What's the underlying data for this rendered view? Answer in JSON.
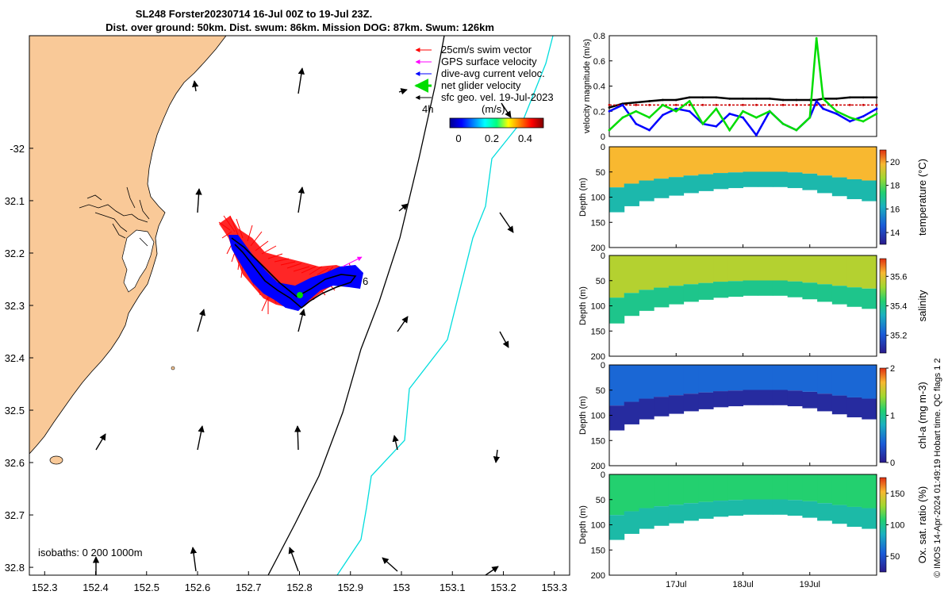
{
  "title": {
    "line1": "SL248 Forster20230714 16-Jul 00Z to 19-Jul 23Z.",
    "line2": "Dist. over ground: 50km. Dist. swum: 86km. Mission DOG: 87km. Swum: 126km"
  },
  "colors": {
    "land": "#f9c998",
    "swim": "#ff0000",
    "gps": "#ff00ff",
    "dive_avg": "#0000ff",
    "net": "#00dd00",
    "sfc_geo": "#000000",
    "isobath_200": "#000000",
    "isobath_1000": "#00dddd",
    "red_dashed": "#cc0000"
  },
  "map": {
    "xlim": [
      152.27,
      153.33
    ],
    "ylim": [
      -32.815,
      -31.785
    ],
    "x_ticks": [
      "152.3",
      "152.4",
      "152.5",
      "152.6",
      "152.7",
      "152.8",
      "152.9",
      "153",
      "153.1",
      "153.2",
      "153.3"
    ],
    "y_ticks": [
      "-32",
      "32.1",
      "32.2",
      "32.3",
      "32.4",
      "32.5",
      "32.6",
      "32.7",
      "32.8"
    ],
    "legend": [
      {
        "label": "25cm/s swim vector",
        "color": "#ff0000"
      },
      {
        "label": "GPS surface velocity",
        "color": "#ff00ff"
      },
      {
        "label": "dive-avg current veloc.",
        "color": "#0000ff"
      },
      {
        "label": "net glider velocity",
        "color": "#00dd00"
      },
      {
        "label": "sfc geo. vel. 19-Jul-2023",
        "color": "#000000"
      }
    ],
    "colorbar": {
      "label_4h": "4h",
      "units": "(m/s)",
      "ticks": [
        "0",
        "0.2",
        "0.4"
      ],
      "range": [
        0,
        0.5
      ]
    },
    "isobath_label": "isobaths: 0   200  1000m",
    "track_label": "6"
  },
  "chart_data": [
    {
      "type": "line",
      "title": "",
      "ylabel": "velocity magnitude (m/s)",
      "ylim": [
        0,
        0.8
      ],
      "y_ticks": [
        "0",
        "0.2",
        "0.4",
        "0.6",
        "0.8"
      ],
      "x_ticks": [
        "17Jul",
        "18Jul",
        "19Jul"
      ],
      "x": [
        16.0,
        16.2,
        16.4,
        16.6,
        16.8,
        17.0,
        17.2,
        17.4,
        17.6,
        17.8,
        18.0,
        18.2,
        18.4,
        18.6,
        18.8,
        19.0,
        19.1,
        19.2,
        19.4,
        19.6,
        19.8,
        20.0
      ],
      "series": [
        {
          "name": "surface geostrophic speed",
          "color": "#000000",
          "values": [
            0.23,
            0.26,
            0.27,
            0.28,
            0.29,
            0.29,
            0.31,
            0.31,
            0.31,
            0.3,
            0.3,
            0.3,
            0.3,
            0.29,
            0.29,
            0.29,
            0.29,
            0.3,
            0.3,
            0.31,
            0.31,
            0.31
          ]
        },
        {
          "name": "25cm/s swim speed",
          "color": "#cc0000",
          "values": [
            0.25,
            0.25,
            0.25,
            0.25,
            0.25,
            0.25,
            0.25,
            0.25,
            0.25,
            0.25,
            0.25,
            0.25,
            0.25,
            0.25,
            0.25,
            0.25,
            0.25,
            0.25,
            0.25,
            0.25,
            0.25,
            0.25
          ]
        },
        {
          "name": "dive-avg current speed",
          "color": "#0000ff",
          "values": [
            0.2,
            0.25,
            0.1,
            0.05,
            0.17,
            0.22,
            0.2,
            0.1,
            0.08,
            0.18,
            0.15,
            0.01,
            0.2,
            0.1,
            0.05,
            0.15,
            0.28,
            0.22,
            0.18,
            0.12,
            0.16,
            0.22
          ]
        },
        {
          "name": "net glider speed",
          "color": "#00dd00",
          "values": [
            0.05,
            0.15,
            0.2,
            0.15,
            0.25,
            0.2,
            0.28,
            0.1,
            0.22,
            0.05,
            0.2,
            0.15,
            0.2,
            0.1,
            0.05,
            0.15,
            0.78,
            0.3,
            0.2,
            0.15,
            0.12,
            0.18
          ]
        }
      ]
    },
    {
      "type": "heatmap",
      "ylabel": "Depth (m)",
      "cbar_label": "temperature (°C)",
      "cbar_ticks": [
        "14",
        "16",
        "18",
        "20"
      ],
      "cbar_range": [
        13,
        21
      ],
      "y_ticks": [
        "0",
        "50",
        "100",
        "150",
        "200"
      ],
      "ylim": [
        0,
        200
      ],
      "bottom_depth": [
        130,
        118,
        108,
        102,
        97,
        92,
        88,
        84,
        82,
        80,
        80,
        80,
        82,
        86,
        92,
        98,
        104,
        108
      ],
      "surface_value": 19.8,
      "deep_value": 16.5
    },
    {
      "type": "heatmap",
      "ylabel": "Depth (m)",
      "cbar_label": "salinity",
      "cbar_ticks": [
        "35.2",
        "35.4",
        "35.6"
      ],
      "cbar_range": [
        35.08,
        35.72
      ],
      "y_ticks": [
        "0",
        "50",
        "100",
        "150",
        "200"
      ],
      "ylim": [
        0,
        200
      ],
      "bottom_depth": [
        135,
        120,
        110,
        103,
        97,
        92,
        88,
        84,
        82,
        80,
        80,
        80,
        83,
        87,
        92,
        97,
        102,
        106
      ],
      "surface_value": 35.55,
      "deep_value": 35.4
    },
    {
      "type": "heatmap",
      "ylabel": "Depth (m)",
      "cbar_label": "chl-a (mg m-3)",
      "cbar_ticks": [
        "0",
        "1",
        "2"
      ],
      "cbar_range": [
        0,
        2
      ],
      "y_ticks": [
        "0",
        "50",
        "100",
        "150",
        "200"
      ],
      "ylim": [
        0,
        200
      ],
      "bottom_depth": [
        130,
        118,
        108,
        102,
        97,
        92,
        88,
        84,
        82,
        80,
        80,
        80,
        82,
        86,
        92,
        98,
        104,
        108
      ],
      "surface_value": 0.45,
      "deep_value": 0.1
    },
    {
      "type": "heatmap",
      "ylabel": "Depth (m)",
      "cbar_label": "Ox. sat. ratio (%)",
      "cbar_ticks": [
        "50",
        "100",
        "150"
      ],
      "cbar_range": [
        25,
        175
      ],
      "y_ticks": [
        "0",
        "50",
        "100",
        "150",
        "200"
      ],
      "ylim": [
        0,
        200
      ],
      "bottom_depth": [
        130,
        118,
        108,
        102,
        97,
        92,
        88,
        84,
        82,
        80,
        80,
        80,
        82,
        86,
        92,
        98,
        104,
        108
      ],
      "surface_value": 108,
      "deep_value": 92
    }
  ],
  "side_note": "© IMOS 14-Apr-2024 01:49:19 Hobart time. QC flags 1  2"
}
